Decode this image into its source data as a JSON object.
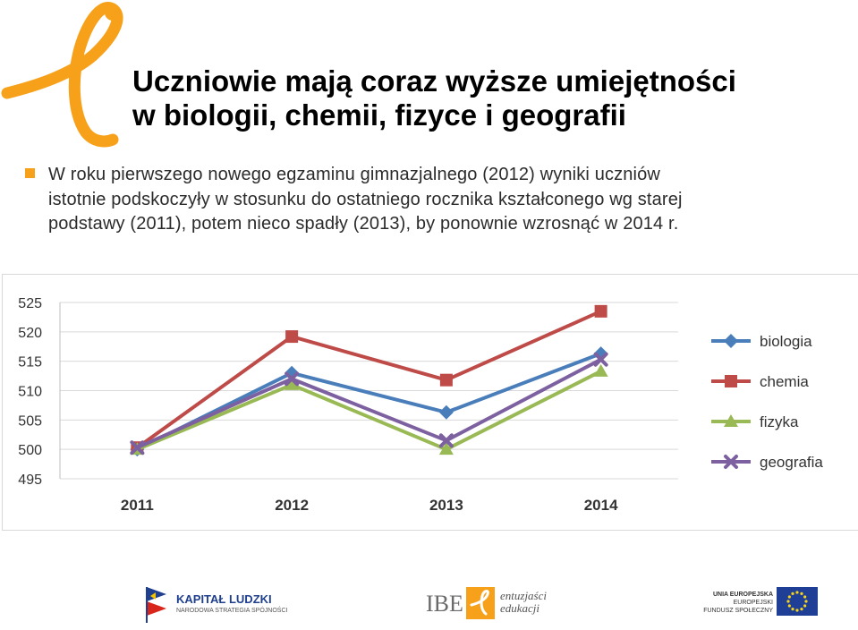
{
  "slide": {
    "title_line1": "Uczniowie mają coraz wyższe umiejętności",
    "title_line2": "w biologii, chemii, fizyce i geografii",
    "bullet_line1": "W roku pierwszego nowego egzaminu gimnazjalnego (2012) wyniki uczniów",
    "bullet_line2": "istotnie podskoczyły w stosunku do ostatniego rocznika kształconego wg starej",
    "bullet_line3": "podstawy (2011), potem nieco spadły (2013), by ponownie wzrosnąć w 2014 r."
  },
  "colors": {
    "accent_orange": "#f7a11a",
    "biologia": "#4a7ebb",
    "chemia": "#be4b48",
    "fizyka": "#98b954",
    "geografia": "#7d60a0"
  },
  "chart_data": {
    "type": "line",
    "categories": [
      "2011",
      "2012",
      "2013",
      "2014"
    ],
    "ylim": [
      495,
      525
    ],
    "yticks": [
      495,
      500,
      505,
      510,
      515,
      520,
      525
    ],
    "grid": "horizontal",
    "legend_position": "right",
    "series": [
      {
        "name": "biologia",
        "values": [
          500,
          513,
          506.3,
          516.3
        ],
        "color": "#4a7ebb",
        "marker": "diamond"
      },
      {
        "name": "chemia",
        "values": [
          500.3,
          519.2,
          511.8,
          523.5
        ],
        "color": "#be4b48",
        "marker": "square"
      },
      {
        "name": "fizyka",
        "values": [
          500,
          511,
          500,
          513.3
        ],
        "color": "#98b954",
        "marker": "triangle"
      },
      {
        "name": "geografia",
        "values": [
          500.3,
          512,
          501.5,
          515.3
        ],
        "color": "#7d60a0",
        "marker": "x"
      }
    ]
  },
  "footer": {
    "kl_title": "KAPITAŁ LUDZKI",
    "kl_subtitle": "NARODOWA STRATEGIA SPÓJNOŚCI",
    "ibe_text": "IBE",
    "ibe_tag1": "entuzjaści",
    "ibe_tag2": "edukacji",
    "ue_line1": "UNIA EUROPEJSKA",
    "ue_line2": "EUROPEJSKI",
    "ue_line3": "FUNDUSZ SPOŁECZNY"
  }
}
